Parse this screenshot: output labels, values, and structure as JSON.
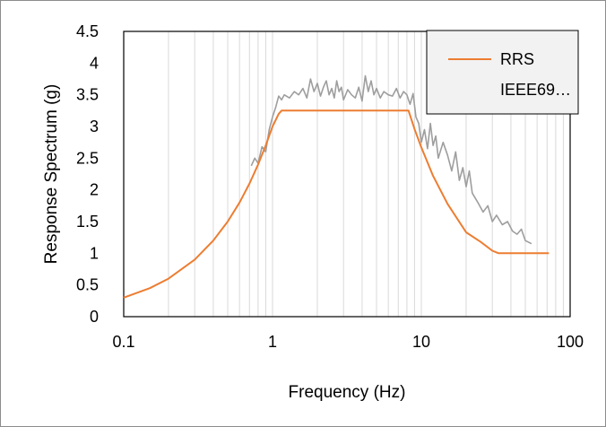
{
  "chart_data": {
    "type": "line",
    "title": "",
    "xlabel": "Frequency (Hz)",
    "ylabel": "Response Spectrum (g)",
    "xscale": "log",
    "xlim": [
      0.1,
      100
    ],
    "ylim": [
      0,
      4.5
    ],
    "x_ticks": [
      "0.1",
      "1",
      "10",
      "100"
    ],
    "y_ticks": [
      "0",
      "0.5",
      "1",
      "1.5",
      "2",
      "2.5",
      "3",
      "3.5",
      "4",
      "4.5"
    ],
    "grid": "vertical minor log gridlines",
    "legend_position": "top-right",
    "series": [
      {
        "name": "RRS",
        "color": "#9e9e9e",
        "x": [
          0.72,
          0.76,
          0.8,
          0.85,
          0.9,
          0.95,
          1.0,
          1.05,
          1.1,
          1.15,
          1.2,
          1.3,
          1.4,
          1.5,
          1.6,
          1.7,
          1.8,
          1.9,
          2.0,
          2.1,
          2.2,
          2.3,
          2.4,
          2.5,
          2.6,
          2.7,
          2.8,
          2.9,
          3.0,
          3.2,
          3.4,
          3.6,
          3.8,
          4.0,
          4.2,
          4.4,
          4.6,
          4.8,
          5.0,
          5.3,
          5.6,
          6.0,
          6.4,
          6.8,
          7.2,
          7.6,
          8.0,
          8.4,
          8.8,
          9.2,
          9.6,
          10,
          10.5,
          11,
          11.5,
          12,
          12.5,
          13,
          14,
          15,
          16,
          17,
          18,
          19,
          20,
          21,
          22,
          24,
          26,
          28,
          30,
          32,
          35,
          38,
          41,
          44,
          47,
          50,
          55
        ],
        "y": [
          2.38,
          2.5,
          2.42,
          2.68,
          2.6,
          2.95,
          3.15,
          3.3,
          3.48,
          3.42,
          3.5,
          3.45,
          3.55,
          3.5,
          3.6,
          3.45,
          3.75,
          3.55,
          3.68,
          3.48,
          3.62,
          3.72,
          3.5,
          3.6,
          3.45,
          3.72,
          3.55,
          3.62,
          3.42,
          3.58,
          3.5,
          3.45,
          3.62,
          3.4,
          3.8,
          3.55,
          3.72,
          3.5,
          3.6,
          3.45,
          3.55,
          3.5,
          3.48,
          3.6,
          3.45,
          3.55,
          3.5,
          3.35,
          3.52,
          3.15,
          3.05,
          2.75,
          2.95,
          2.65,
          3.05,
          2.7,
          2.85,
          2.5,
          2.75,
          2.55,
          2.3,
          2.6,
          2.15,
          2.35,
          2.05,
          2.3,
          1.95,
          1.8,
          1.65,
          1.75,
          1.5,
          1.6,
          1.45,
          1.5,
          1.35,
          1.3,
          1.38,
          1.2,
          1.15
        ]
      },
      {
        "name": "IEEE69…",
        "color": "#ed7d31",
        "x": [
          0.1,
          0.15,
          0.2,
          0.3,
          0.4,
          0.5,
          0.6,
          0.7,
          0.8,
          0.9,
          1.0,
          1.1,
          1.15,
          1.3,
          2,
          4,
          6,
          8,
          8.2,
          9,
          10,
          12,
          15,
          20,
          25,
          30,
          33,
          40,
          50,
          60,
          72
        ],
        "y": [
          0.3,
          0.45,
          0.6,
          0.9,
          1.2,
          1.5,
          1.8,
          2.1,
          2.4,
          2.7,
          3.0,
          3.2,
          3.25,
          3.25,
          3.25,
          3.25,
          3.25,
          3.25,
          3.25,
          2.96,
          2.67,
          2.22,
          1.78,
          1.33,
          1.18,
          1.04,
          1.0,
          1.0,
          1.0,
          1.0,
          1.0
        ]
      }
    ],
    "legend": {
      "entries": [
        "RRS",
        "IEEE69…"
      ]
    }
  }
}
